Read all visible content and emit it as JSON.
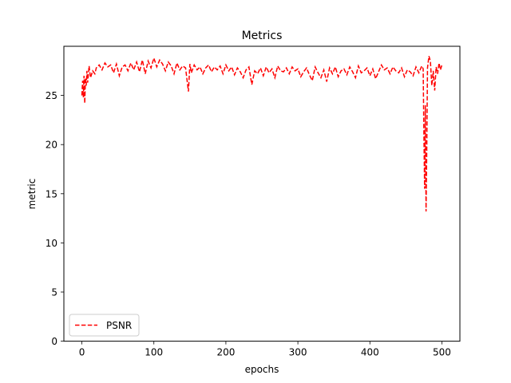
{
  "chart_data": {
    "type": "line",
    "title": "Metrics",
    "xlabel": "epochs",
    "ylabel": "metric",
    "xlim": [
      -25,
      525
    ],
    "ylim": [
      0,
      30
    ],
    "xticks": [
      0,
      100,
      200,
      300,
      400,
      500
    ],
    "yticks": [
      0,
      5,
      10,
      15,
      20,
      25
    ],
    "grid": false,
    "legend": {
      "placement": "lower-left",
      "entries": [
        "PSNR"
      ]
    },
    "series": [
      {
        "name": "PSNR",
        "color": "#ff0000",
        "style": "dashed",
        "x": [
          0,
          1,
          2,
          3,
          4,
          5,
          6,
          7,
          8,
          10,
          12,
          15,
          18,
          20,
          24,
          28,
          32,
          36,
          40,
          44,
          48,
          52,
          56,
          60,
          64,
          68,
          72,
          76,
          80,
          84,
          88,
          92,
          96,
          100,
          104,
          108,
          112,
          116,
          120,
          124,
          128,
          132,
          136,
          140,
          144,
          148,
          150,
          152,
          156,
          160,
          164,
          168,
          172,
          176,
          180,
          184,
          188,
          192,
          196,
          200,
          204,
          208,
          212,
          216,
          220,
          224,
          228,
          232,
          236,
          240,
          244,
          248,
          252,
          256,
          260,
          264,
          268,
          272,
          276,
          280,
          284,
          288,
          292,
          296,
          300,
          304,
          308,
          312,
          316,
          320,
          324,
          328,
          332,
          336,
          340,
          344,
          348,
          352,
          356,
          360,
          364,
          368,
          372,
          376,
          380,
          384,
          388,
          392,
          396,
          400,
          404,
          408,
          412,
          416,
          420,
          424,
          428,
          432,
          436,
          440,
          444,
          448,
          452,
          456,
          460,
          464,
          468,
          472,
          474,
          475,
          476,
          477,
          478,
          479,
          480,
          482,
          484,
          486,
          488,
          490,
          492,
          494,
          496,
          498,
          500
        ],
        "y": [
          25.0,
          26.5,
          24.8,
          27.0,
          24.2,
          26.8,
          26.0,
          27.5,
          26.3,
          28.0,
          26.8,
          27.5,
          27.2,
          27.8,
          28.1,
          27.6,
          28.3,
          27.9,
          28.1,
          27.3,
          28.2,
          27.0,
          27.9,
          28.1,
          27.5,
          28.3,
          27.6,
          28.4,
          27.4,
          28.6,
          27.2,
          28.5,
          27.8,
          28.8,
          27.9,
          28.6,
          28.2,
          27.5,
          28.4,
          28.0,
          27.2,
          28.3,
          27.6,
          28.0,
          27.8,
          25.4,
          28.2,
          27.3,
          28.1,
          27.6,
          27.9,
          27.2,
          27.8,
          28.1,
          27.4,
          27.9,
          27.6,
          28.0,
          27.2,
          28.1,
          27.5,
          27.9,
          27.1,
          27.8,
          27.4,
          26.8,
          27.6,
          27.9,
          26.1,
          27.5,
          27.2,
          27.8,
          27.0,
          27.9,
          27.3,
          27.7,
          26.8,
          28.0,
          27.5,
          27.4,
          27.8,
          27.2,
          27.9,
          27.5,
          27.7,
          26.9,
          27.4,
          27.8,
          27.1,
          26.5,
          27.9,
          27.3,
          26.8,
          27.6,
          26.4,
          27.8,
          27.2,
          27.9,
          26.9,
          27.5,
          27.7,
          27.1,
          27.9,
          27.4,
          26.8,
          28.0,
          27.3,
          27.5,
          27.8,
          27.0,
          27.7,
          26.7,
          27.4,
          28.1,
          27.6,
          27.8,
          27.2,
          27.9,
          27.5,
          27.3,
          27.8,
          26.9,
          27.6,
          27.4,
          27.0,
          27.9,
          27.3,
          28.0,
          27.7,
          21.0,
          15.5,
          24.0,
          13.2,
          19.5,
          27.8,
          29.0,
          28.5,
          26.0,
          27.5,
          25.5,
          27.9,
          27.2,
          28.3,
          27.6,
          28.1
        ]
      }
    ]
  }
}
